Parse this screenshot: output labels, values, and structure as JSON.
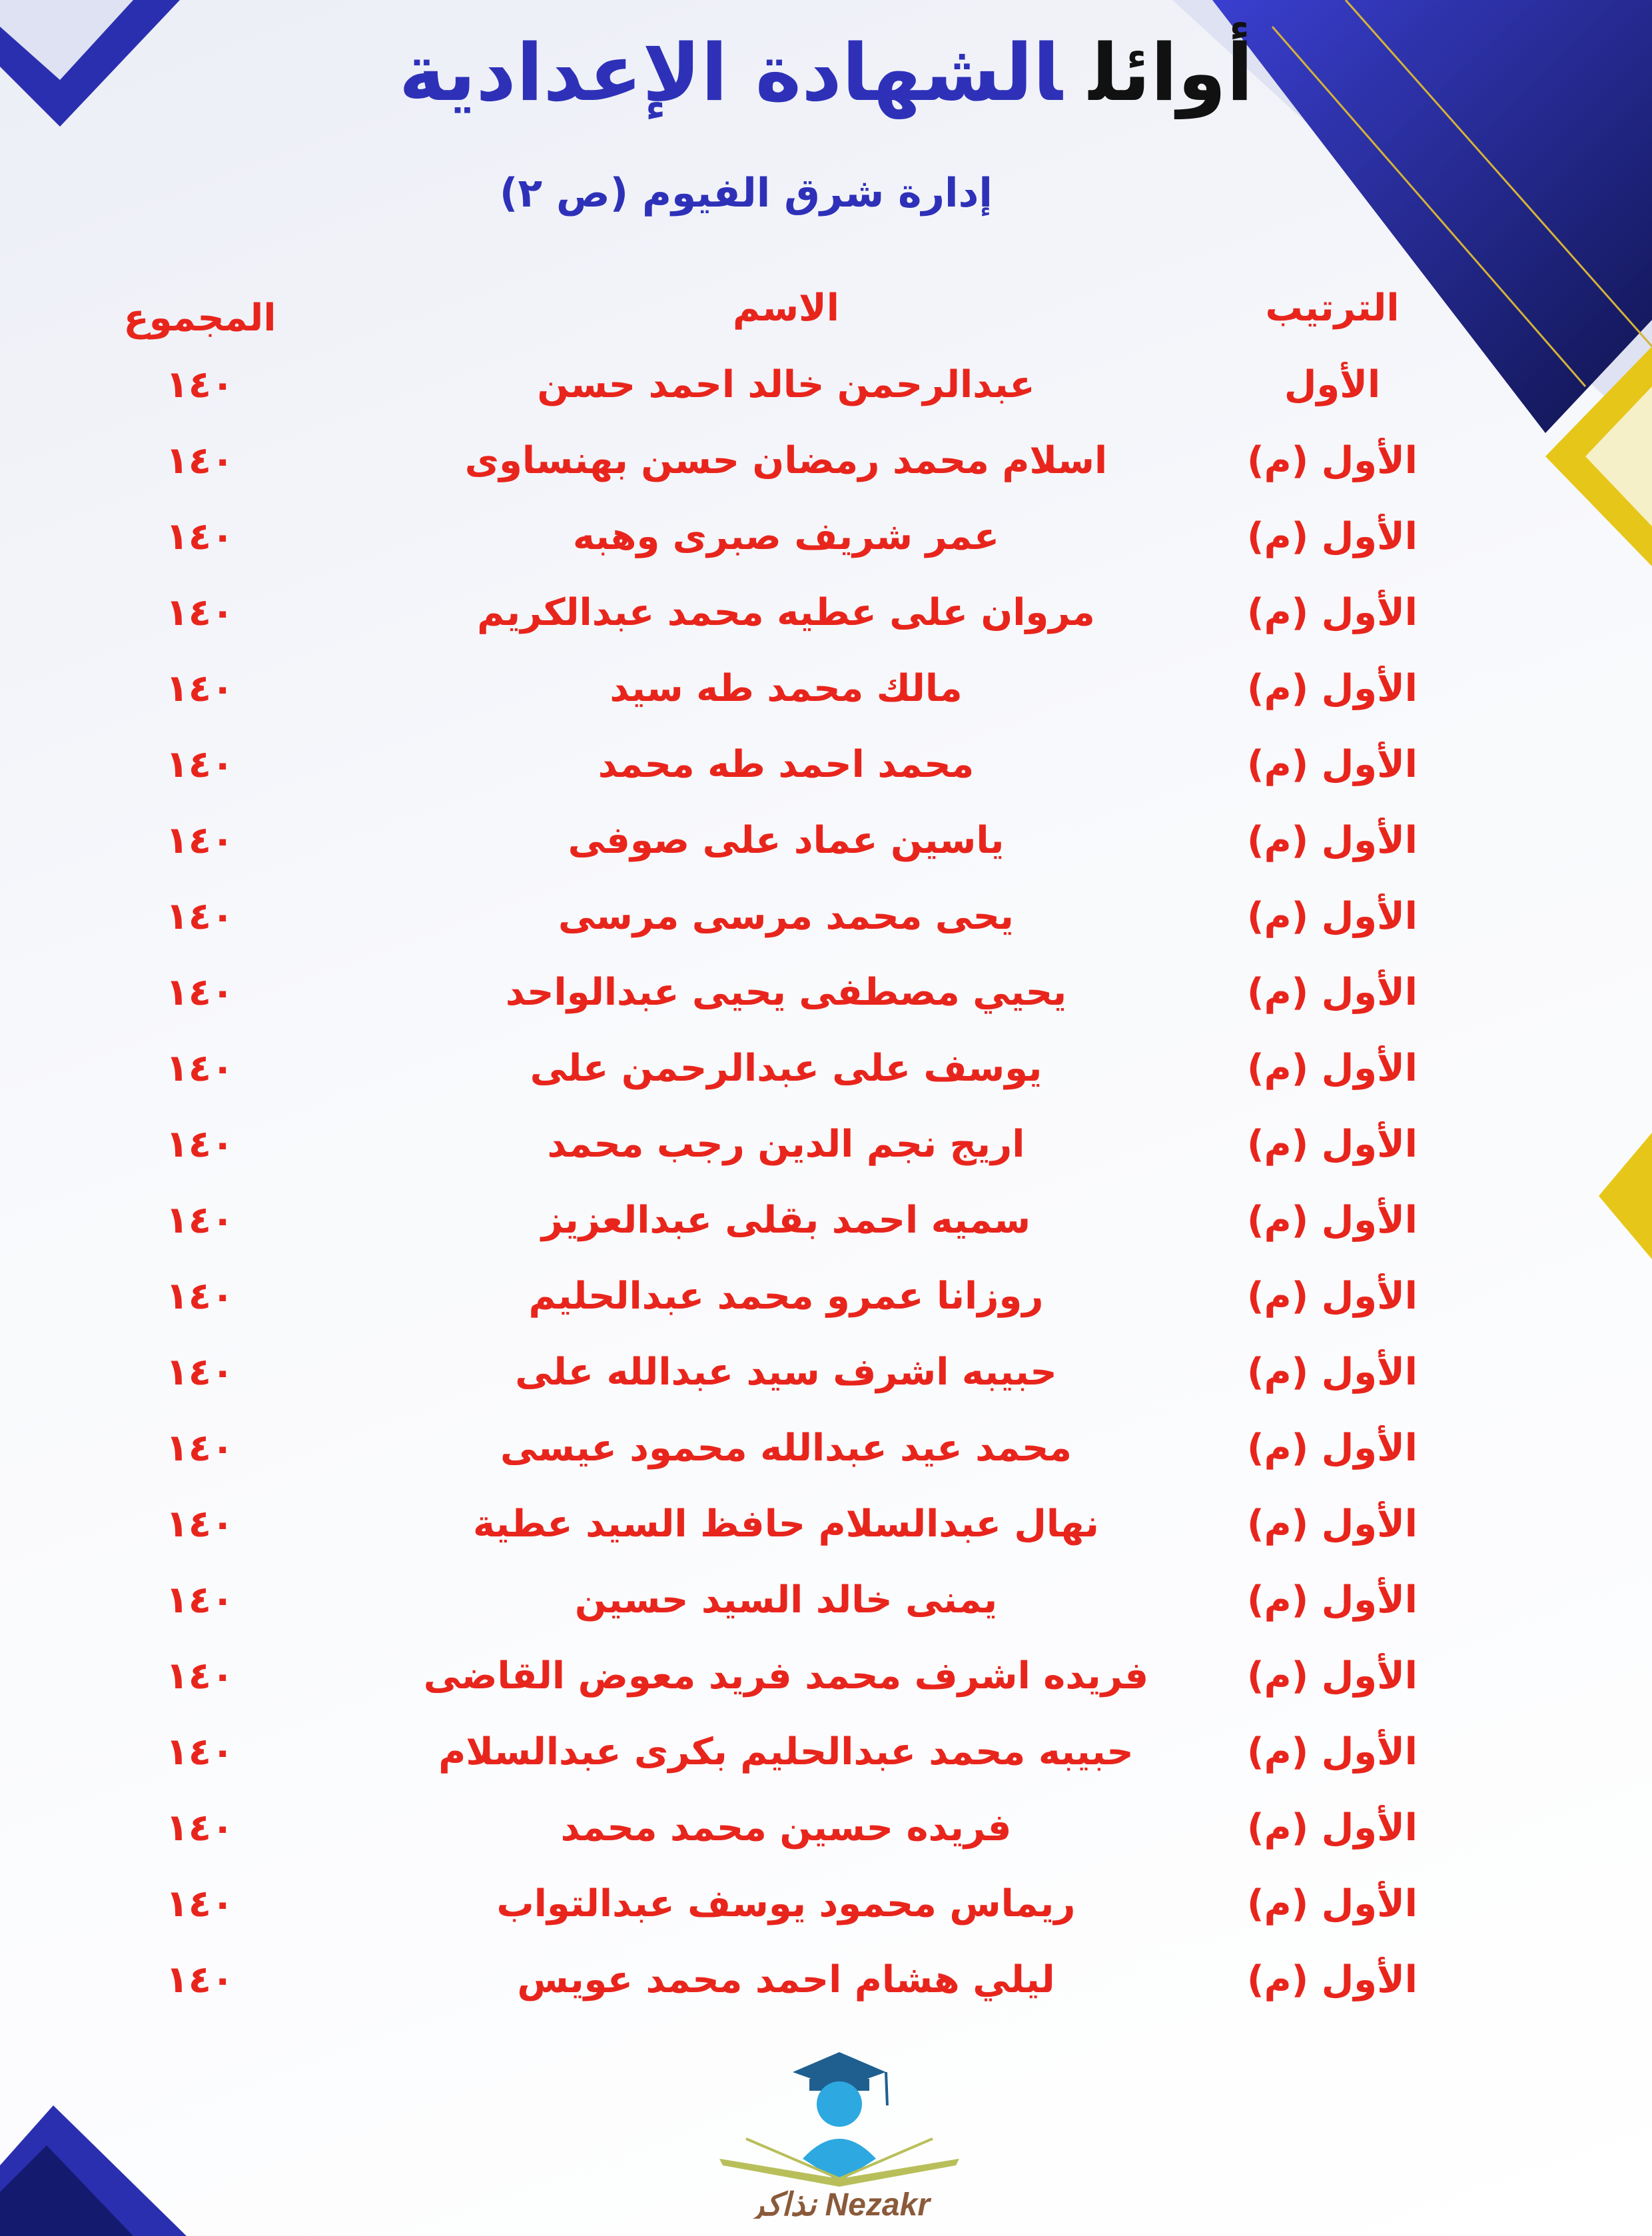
{
  "header": {
    "title_part1": "أوائل",
    "title_part2": "الشهادة الإعدادية",
    "subtitle": "إدارة شرق الفيوم (ص ٢)"
  },
  "table": {
    "columns": {
      "rank": "الترتيب",
      "name": "الاسم",
      "total": "المجموع"
    },
    "rows": [
      {
        "rank": "الأول",
        "name": "عبدالرحمن خالد احمد حسن",
        "total": "١٤٠"
      },
      {
        "rank": "الأول (م)",
        "name": "اسلام محمد رمضان حسن بهنساوى",
        "total": "١٤٠"
      },
      {
        "rank": "الأول (م)",
        "name": "عمر شريف صبرى وهبه",
        "total": "١٤٠"
      },
      {
        "rank": "الأول (م)",
        "name": "مروان على عطيه محمد عبدالكريم",
        "total": "١٤٠"
      },
      {
        "rank": "الأول (م)",
        "name": "مالك محمد طه سيد",
        "total": "١٤٠"
      },
      {
        "rank": "الأول (م)",
        "name": "محمد احمد طه محمد",
        "total": "١٤٠"
      },
      {
        "rank": "الأول (م)",
        "name": "ياسين عماد على صوفى",
        "total": "١٤٠"
      },
      {
        "rank": "الأول (م)",
        "name": "يحى محمد مرسى مرسى",
        "total": "١٤٠"
      },
      {
        "rank": "الأول (م)",
        "name": "يحيي مصطفى يحيى عبدالواحد",
        "total": "١٤٠"
      },
      {
        "rank": "الأول (م)",
        "name": "يوسف على عبدالرحمن على",
        "total": "١٤٠"
      },
      {
        "rank": "الأول (م)",
        "name": "اريج نجم الدين رجب محمد",
        "total": "١٤٠"
      },
      {
        "rank": "الأول (م)",
        "name": "سميه احمد بقلى عبدالعزيز",
        "total": "١٤٠"
      },
      {
        "rank": "الأول (م)",
        "name": "روزانا عمرو محمد عبدالحليم",
        "total": "١٤٠"
      },
      {
        "rank": "الأول (م)",
        "name": "حبيبه اشرف سيد عبدالله على",
        "total": "١٤٠"
      },
      {
        "rank": "الأول (م)",
        "name": "محمد عيد عبدالله محمود عيسى",
        "total": "١٤٠"
      },
      {
        "rank": "الأول (م)",
        "name": "نهال عبدالسلام حافظ السيد عطية",
        "total": "١٤٠"
      },
      {
        "rank": "الأول (م)",
        "name": "يمنى خالد السيد حسين",
        "total": "١٤٠"
      },
      {
        "rank": "الأول (م)",
        "name": "فريده اشرف محمد فريد معوض القاضى",
        "total": "١٤٠"
      },
      {
        "rank": "الأول (م)",
        "name": "حبيبه محمد عبدالحليم بكرى عبدالسلام",
        "total": "١٤٠"
      },
      {
        "rank": "الأول (م)",
        "name": "فريده حسين محمد محمد",
        "total": "١٤٠"
      },
      {
        "rank": "الأول (م)",
        "name": "ريماس محمود يوسف عبدالتواب",
        "total": "١٤٠"
      },
      {
        "rank": "الأول (م)",
        "name": "ليلي هشام احمد محمد عويس",
        "total": "١٤٠"
      }
    ]
  },
  "logo": {
    "text_en": "Nezakr",
    "text_ar": "نذاكر"
  },
  "colors": {
    "accent_blue": "#2e31b8",
    "text_red": "#e8251c",
    "gold": "#e6c619",
    "navy": "#141a6e"
  }
}
